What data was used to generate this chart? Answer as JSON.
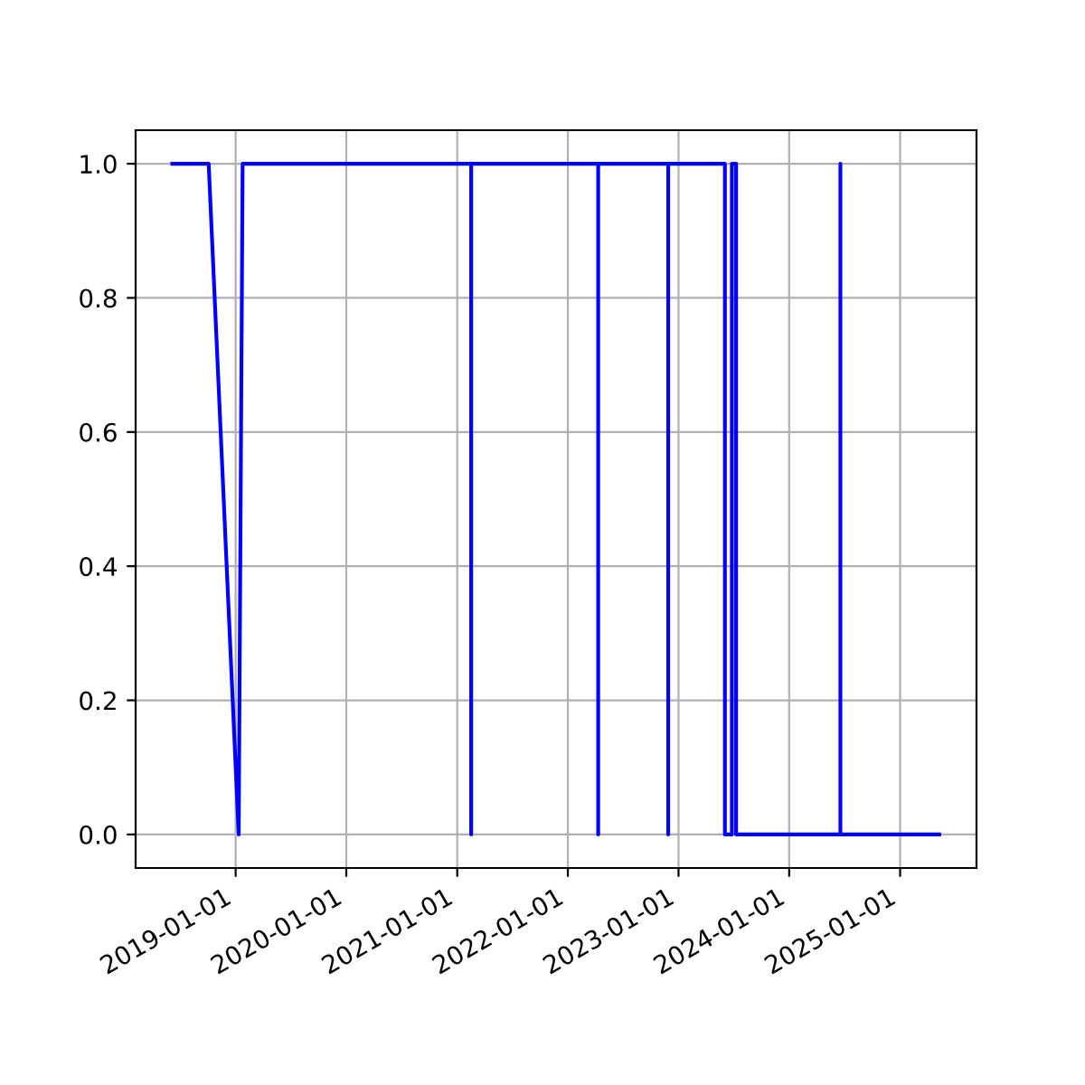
{
  "chart_data": {
    "type": "line",
    "grid": true,
    "line_style": "solid",
    "x": [
      "2018-06-06",
      "2018-10-04",
      "2019-01-11",
      "2019-01-24",
      "2021-02-16",
      "2021-02-16",
      "2021-02-16",
      "2022-04-11",
      "2022-04-11",
      "2022-04-11",
      "2022-11-28",
      "2022-11-28",
      "2022-11-28",
      "2023-06-03",
      "2023-06-03",
      "2023-06-26",
      "2023-06-26",
      "2023-07-10",
      "2023-07-10",
      "2024-06-18",
      "2024-06-18",
      "2024-06-18",
      "2025-05-10"
    ],
    "series": [
      {
        "color": "#0000ff",
        "values": [
          1,
          1,
          0,
          1,
          1,
          0,
          1,
          1,
          0,
          1,
          1,
          0,
          1,
          1,
          0,
          0,
          1,
          1,
          0,
          0,
          1,
          0,
          0
        ]
      }
    ],
    "xlim": [
      "2018-02-05",
      "2025-09-10"
    ],
    "xticks": [
      "2019-01-01",
      "2020-01-01",
      "2021-01-01",
      "2022-01-01",
      "2023-01-01",
      "2024-01-01",
      "2025-01-01"
    ],
    "ylim": [
      -0.05,
      1.05
    ],
    "yticks": [
      {
        "value": 0,
        "label": "0.0"
      },
      {
        "value": 0.2,
        "label": "0.2"
      },
      {
        "value": 0.4,
        "label": "0.4"
      },
      {
        "value": 0.6,
        "label": "0.6"
      },
      {
        "value": 0.8,
        "label": "0.8"
      },
      {
        "value": 1,
        "label": "1.0"
      }
    ]
  }
}
